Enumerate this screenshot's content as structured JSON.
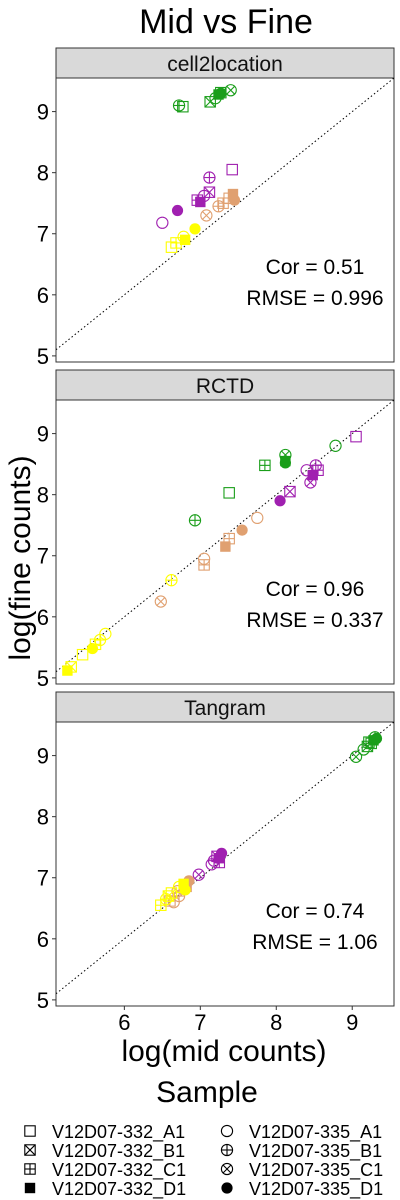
{
  "chart_data": {
    "type": "scatter",
    "title": "Mid vs Fine",
    "xlabel": "log(mid counts)",
    "ylabel": "log(fine counts)",
    "xlim": [
      5.1,
      9.55
    ],
    "ylim": [
      4.9,
      9.55
    ],
    "xticks": [
      6,
      7,
      8,
      9
    ],
    "yticks": [
      5,
      6,
      7,
      8,
      9
    ],
    "reference_line": "y = x (dotted)",
    "grid": false,
    "colors": {
      "green": "#1a9e1a",
      "purple": "#a020b0",
      "tan": "#e0a070",
      "yellow": "#ffff00",
      "strip": "#d9d9d9",
      "panel_border": "#333333"
    },
    "legend": {
      "title": "Sample",
      "position": "bottom",
      "entries": [
        {
          "label": "V12D07-332_A1",
          "shape": "square-open"
        },
        {
          "label": "V12D07-332_B1",
          "shape": "square-cross"
        },
        {
          "label": "V12D07-332_C1",
          "shape": "square-plus"
        },
        {
          "label": "V12D07-332_D1",
          "shape": "square-filled"
        },
        {
          "label": "V12D07-335_A1",
          "shape": "circle-open"
        },
        {
          "label": "V12D07-335_B1",
          "shape": "circle-plus"
        },
        {
          "label": "V12D07-335_C1",
          "shape": "circle-cross"
        },
        {
          "label": "V12D07-335_D1",
          "shape": "circle-filled"
        }
      ]
    },
    "panels": [
      {
        "name": "cell2location",
        "cor_label": "Cor = 0.51",
        "rmse_label": "RMSE = 0.996",
        "points": [
          {
            "x": 6.77,
            "y": 9.08,
            "shape": "square-open",
            "color": "green"
          },
          {
            "x": 6.72,
            "y": 9.1,
            "shape": "circle-plus",
            "color": "green"
          },
          {
            "x": 7.13,
            "y": 9.16,
            "shape": "square-cross",
            "color": "green"
          },
          {
            "x": 7.2,
            "y": 9.22,
            "shape": "circle-open",
            "color": "green"
          },
          {
            "x": 7.27,
            "y": 9.31,
            "shape": "square-plus",
            "color": "green"
          },
          {
            "x": 7.24,
            "y": 9.28,
            "shape": "square-filled",
            "color": "green"
          },
          {
            "x": 7.4,
            "y": 9.35,
            "shape": "circle-cross",
            "color": "green"
          },
          {
            "x": 7.27,
            "y": 9.3,
            "shape": "circle-filled",
            "color": "green"
          },
          {
            "x": 7.42,
            "y": 8.05,
            "shape": "square-open",
            "color": "purple"
          },
          {
            "x": 7.12,
            "y": 7.92,
            "shape": "circle-plus",
            "color": "purple"
          },
          {
            "x": 7.12,
            "y": 7.68,
            "shape": "square-cross",
            "color": "purple"
          },
          {
            "x": 7.05,
            "y": 7.62,
            "shape": "circle-open",
            "color": "purple"
          },
          {
            "x": 6.96,
            "y": 7.55,
            "shape": "square-plus",
            "color": "purple"
          },
          {
            "x": 7.0,
            "y": 7.52,
            "shape": "square-filled",
            "color": "purple"
          },
          {
            "x": 6.5,
            "y": 7.18,
            "shape": "circle-open",
            "color": "purple"
          },
          {
            "x": 6.7,
            "y": 7.38,
            "shape": "circle-filled",
            "color": "purple"
          },
          {
            "x": 7.43,
            "y": 7.65,
            "shape": "square-filled",
            "color": "tan"
          },
          {
            "x": 7.3,
            "y": 7.5,
            "shape": "square-plus",
            "color": "tan"
          },
          {
            "x": 7.24,
            "y": 7.45,
            "shape": "circle-plus",
            "color": "tan"
          },
          {
            "x": 7.45,
            "y": 7.55,
            "shape": "circle-filled",
            "color": "tan"
          },
          {
            "x": 7.08,
            "y": 7.3,
            "shape": "circle-cross",
            "color": "tan"
          },
          {
            "x": 7.38,
            "y": 7.58,
            "shape": "square-open",
            "color": "tan"
          },
          {
            "x": 6.62,
            "y": 6.78,
            "shape": "square-open",
            "color": "yellow"
          },
          {
            "x": 6.68,
            "y": 6.85,
            "shape": "square-plus",
            "color": "yellow"
          },
          {
            "x": 6.78,
            "y": 6.95,
            "shape": "circle-open",
            "color": "yellow"
          },
          {
            "x": 6.8,
            "y": 6.9,
            "shape": "square-filled",
            "color": "yellow"
          },
          {
            "x": 6.93,
            "y": 7.08,
            "shape": "circle-filled",
            "color": "yellow"
          }
        ]
      },
      {
        "name": "RCTD",
        "cor_label": "Cor = 0.96",
        "rmse_label": "RMSE = 0.337",
        "points": [
          {
            "x": 9.05,
            "y": 8.95,
            "shape": "square-open",
            "color": "purple"
          },
          {
            "x": 8.55,
            "y": 8.4,
            "shape": "square-plus",
            "color": "purple"
          },
          {
            "x": 8.52,
            "y": 8.48,
            "shape": "circle-plus",
            "color": "purple"
          },
          {
            "x": 8.45,
            "y": 8.2,
            "shape": "circle-cross",
            "color": "purple"
          },
          {
            "x": 8.18,
            "y": 8.05,
            "shape": "square-cross",
            "color": "purple"
          },
          {
            "x": 8.48,
            "y": 8.32,
            "shape": "square-filled",
            "color": "purple"
          },
          {
            "x": 8.05,
            "y": 7.9,
            "shape": "circle-filled",
            "color": "purple"
          },
          {
            "x": 8.4,
            "y": 8.4,
            "shape": "circle-open",
            "color": "purple"
          },
          {
            "x": 8.78,
            "y": 8.8,
            "shape": "circle-open",
            "color": "green"
          },
          {
            "x": 8.12,
            "y": 8.65,
            "shape": "circle-cross",
            "color": "green"
          },
          {
            "x": 7.85,
            "y": 8.48,
            "shape": "square-plus",
            "color": "green"
          },
          {
            "x": 8.12,
            "y": 8.55,
            "shape": "square-filled",
            "color": "green"
          },
          {
            "x": 8.12,
            "y": 8.52,
            "shape": "circle-filled",
            "color": "green"
          },
          {
            "x": 7.38,
            "y": 8.03,
            "shape": "square-open",
            "color": "green"
          },
          {
            "x": 6.93,
            "y": 7.58,
            "shape": "circle-plus",
            "color": "green"
          },
          {
            "x": 7.75,
            "y": 7.62,
            "shape": "circle-open",
            "color": "tan"
          },
          {
            "x": 7.55,
            "y": 7.42,
            "shape": "circle-filled",
            "color": "tan"
          },
          {
            "x": 7.38,
            "y": 7.28,
            "shape": "square-plus",
            "color": "tan"
          },
          {
            "x": 7.33,
            "y": 7.15,
            "shape": "square-filled",
            "color": "tan"
          },
          {
            "x": 7.05,
            "y": 6.85,
            "shape": "square-plus",
            "color": "tan"
          },
          {
            "x": 7.05,
            "y": 6.95,
            "shape": "circle-open",
            "color": "tan"
          },
          {
            "x": 6.48,
            "y": 6.25,
            "shape": "circle-cross",
            "color": "tan"
          },
          {
            "x": 6.62,
            "y": 6.6,
            "shape": "circle-plus",
            "color": "yellow"
          },
          {
            "x": 5.75,
            "y": 5.72,
            "shape": "circle-open",
            "color": "yellow"
          },
          {
            "x": 5.68,
            "y": 5.62,
            "shape": "circle-plus",
            "color": "yellow"
          },
          {
            "x": 5.62,
            "y": 5.55,
            "shape": "square-plus",
            "color": "yellow"
          },
          {
            "x": 5.58,
            "y": 5.48,
            "shape": "circle-filled",
            "color": "yellow"
          },
          {
            "x": 5.45,
            "y": 5.38,
            "shape": "square-open",
            "color": "yellow"
          },
          {
            "x": 5.3,
            "y": 5.18,
            "shape": "square-cross",
            "color": "yellow"
          },
          {
            "x": 5.25,
            "y": 5.12,
            "shape": "square-filled",
            "color": "yellow"
          }
        ]
      },
      {
        "name": "Tangram",
        "cor_label": "Cor = 0.74",
        "rmse_label": "RMSE = 1.06",
        "points": [
          {
            "x": 9.32,
            "y": 9.28,
            "shape": "circle-filled",
            "color": "green"
          },
          {
            "x": 9.28,
            "y": 9.25,
            "shape": "square-filled",
            "color": "green"
          },
          {
            "x": 9.25,
            "y": 9.2,
            "shape": "square-plus",
            "color": "green"
          },
          {
            "x": 9.2,
            "y": 9.15,
            "shape": "square-cross",
            "color": "green"
          },
          {
            "x": 9.3,
            "y": 9.3,
            "shape": "circle-plus",
            "color": "green"
          },
          {
            "x": 9.15,
            "y": 9.1,
            "shape": "circle-open",
            "color": "green"
          },
          {
            "x": 9.05,
            "y": 8.98,
            "shape": "circle-cross",
            "color": "green"
          },
          {
            "x": 9.22,
            "y": 9.22,
            "shape": "square-open",
            "color": "green"
          },
          {
            "x": 7.28,
            "y": 7.4,
            "shape": "circle-filled",
            "color": "purple"
          },
          {
            "x": 7.25,
            "y": 7.32,
            "shape": "square-filled",
            "color": "purple"
          },
          {
            "x": 7.18,
            "y": 7.28,
            "shape": "circle-plus",
            "color": "purple"
          },
          {
            "x": 7.15,
            "y": 7.22,
            "shape": "circle-open",
            "color": "purple"
          },
          {
            "x": 7.22,
            "y": 7.35,
            "shape": "square-cross",
            "color": "purple"
          },
          {
            "x": 6.98,
            "y": 7.05,
            "shape": "circle-cross",
            "color": "purple"
          },
          {
            "x": 7.25,
            "y": 7.25,
            "shape": "square-plus",
            "color": "purple"
          },
          {
            "x": 6.85,
            "y": 6.95,
            "shape": "circle-filled",
            "color": "tan"
          },
          {
            "x": 6.82,
            "y": 6.85,
            "shape": "square-filled",
            "color": "tan"
          },
          {
            "x": 6.72,
            "y": 6.7,
            "shape": "circle-plus",
            "color": "tan"
          },
          {
            "x": 6.65,
            "y": 6.6,
            "shape": "circle-open",
            "color": "tan"
          },
          {
            "x": 6.6,
            "y": 6.62,
            "shape": "square-plus",
            "color": "tan"
          },
          {
            "x": 6.7,
            "y": 6.78,
            "shape": "circle-cross",
            "color": "tan"
          },
          {
            "x": 6.78,
            "y": 6.9,
            "shape": "square-filled",
            "color": "yellow"
          },
          {
            "x": 6.72,
            "y": 6.85,
            "shape": "circle-open",
            "color": "yellow"
          },
          {
            "x": 6.62,
            "y": 6.75,
            "shape": "square-open",
            "color": "yellow"
          },
          {
            "x": 6.55,
            "y": 6.65,
            "shape": "circle-plus",
            "color": "yellow"
          },
          {
            "x": 6.48,
            "y": 6.55,
            "shape": "square-plus",
            "color": "yellow"
          },
          {
            "x": 6.8,
            "y": 6.8,
            "shape": "circle-filled",
            "color": "yellow"
          },
          {
            "x": 6.58,
            "y": 6.7,
            "shape": "square-cross",
            "color": "yellow"
          }
        ]
      }
    ]
  }
}
